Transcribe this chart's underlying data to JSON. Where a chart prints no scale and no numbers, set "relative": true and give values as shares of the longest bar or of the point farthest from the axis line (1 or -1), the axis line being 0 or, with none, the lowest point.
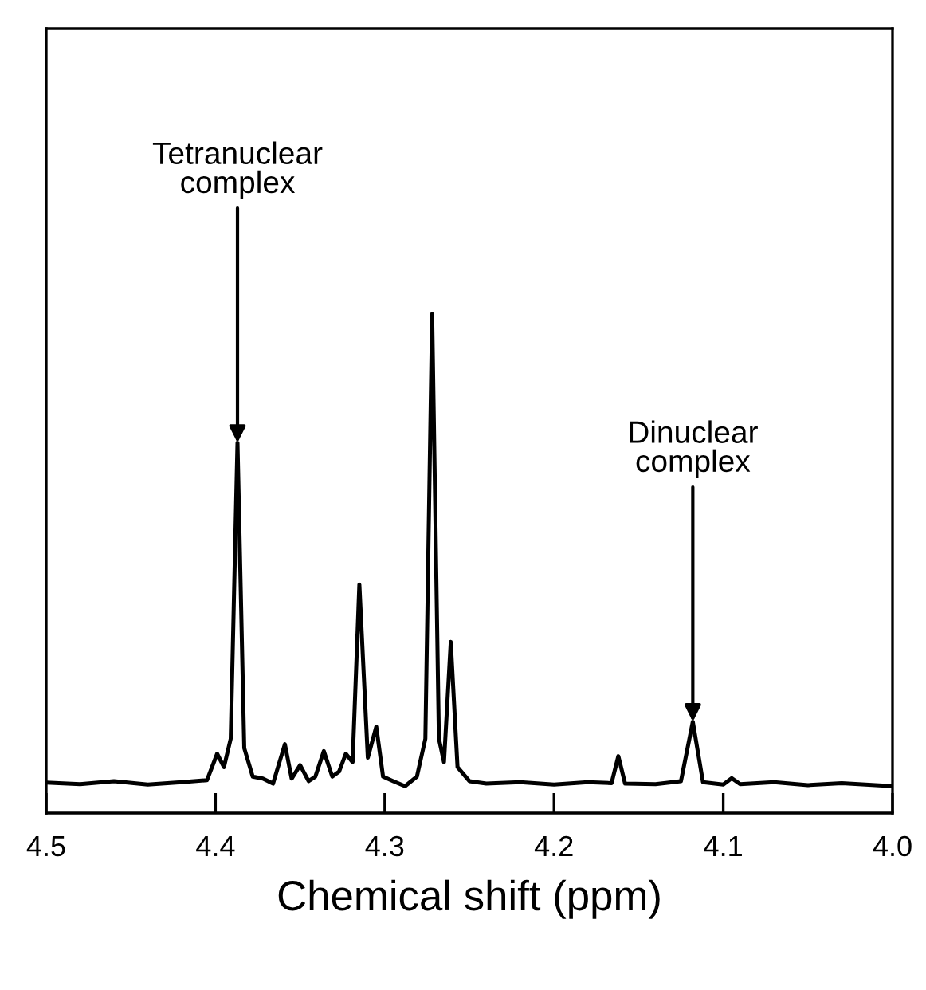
{
  "chart_data": {
    "type": "line",
    "relative": true,
    "xlabel": "Chemical shift (ppm)",
    "xlim": [
      4.5,
      4.0
    ],
    "xticks": [
      4.5,
      4.4,
      4.3,
      4.2,
      4.1,
      {
        "value": 4.0,
        "label": "4.0"
      }
    ],
    "tick_labels": "x",
    "grid": false,
    "legend": false,
    "marker": "none",
    "line_style": "solid",
    "annotations": [
      {
        "text": "Tetranuclear\ncomplex",
        "x": 4.387,
        "y": 0.742
      },
      {
        "text": "Dinuclear\ncomplex",
        "x": 4.118,
        "y": 0.183
      }
    ],
    "series": [
      {
        "color": "#000000",
        "x": [
          4.5,
          4.48,
          4.46,
          4.44,
          4.42,
          4.405,
          4.399,
          4.395,
          4.391,
          4.387,
          4.383,
          4.378,
          4.372,
          4.366,
          4.359,
          4.355,
          4.35,
          4.345,
          4.341,
          4.336,
          4.331,
          4.327,
          4.323,
          4.319,
          4.315,
          4.31,
          4.305,
          4.301,
          4.295,
          4.288,
          4.281,
          4.276,
          4.272,
          4.268,
          4.265,
          4.261,
          4.257,
          4.25,
          4.24,
          4.22,
          4.2,
          4.18,
          4.166,
          4.162,
          4.158,
          4.14,
          4.125,
          4.118,
          4.112,
          4.1,
          4.095,
          4.09,
          4.07,
          4.05,
          4.03,
          4.0
        ],
        "values": [
          0.061,
          0.058,
          0.064,
          0.057,
          0.062,
          0.066,
          0.119,
          0.092,
          0.149,
          0.742,
          0.13,
          0.073,
          0.069,
          0.059,
          0.138,
          0.069,
          0.096,
          0.064,
          0.073,
          0.124,
          0.073,
          0.083,
          0.119,
          0.102,
          0.458,
          0.111,
          0.173,
          0.073,
          0.064,
          0.054,
          0.073,
          0.149,
          1,
          0.149,
          0.102,
          0.343,
          0.092,
          0.064,
          0.059,
          0.062,
          0.057,
          0.062,
          0.06,
          0.114,
          0.059,
          0.058,
          0.064,
          0.183,
          0.062,
          0.057,
          0.07,
          0.058,
          0.062,
          0.056,
          0.06,
          0.054
        ]
      }
    ]
  }
}
